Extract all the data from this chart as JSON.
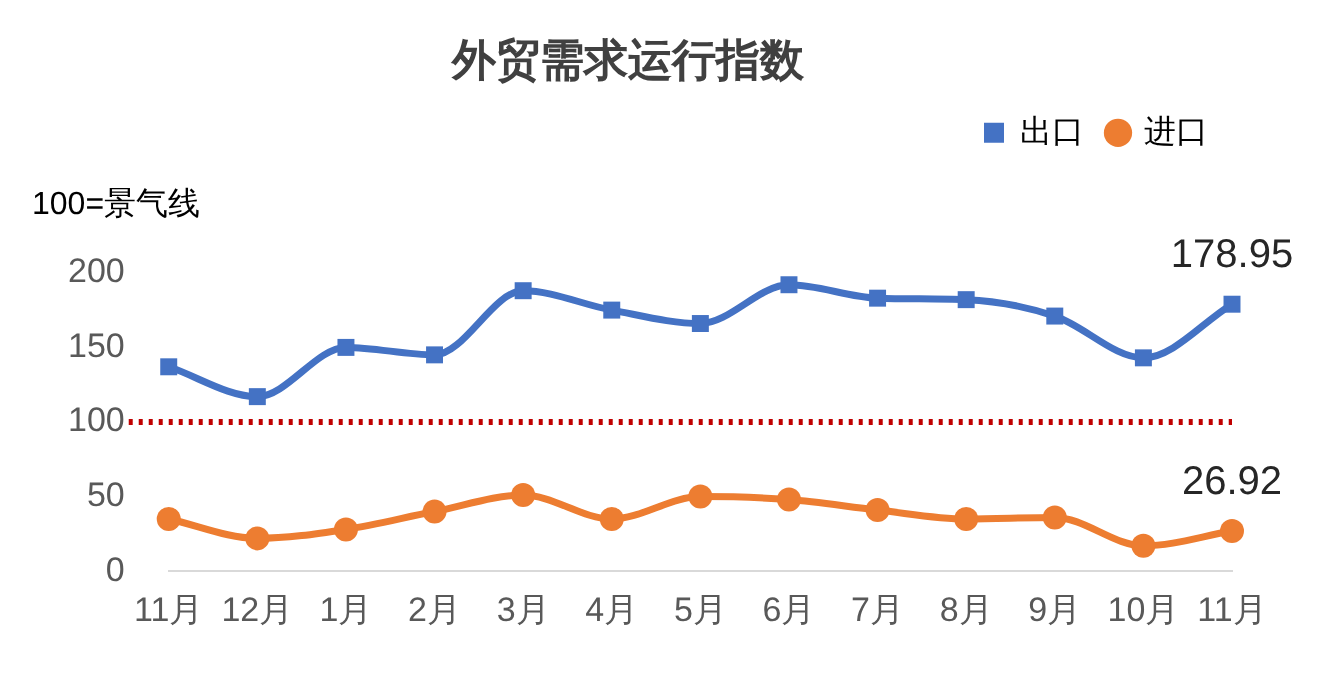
{
  "chart_data": {
    "type": "line",
    "title": "外贸需求运行指数",
    "categories": [
      "11月",
      "12月",
      "1月",
      "2月",
      "3月",
      "4月",
      "5月",
      "6月",
      "7月",
      "8月",
      "9月",
      "10月",
      "11月"
    ],
    "series": [
      {
        "name": "出口",
        "color": "#4472c4",
        "marker": "square",
        "values": [
          137,
          117,
          150,
          145,
          188,
          175,
          166,
          192,
          183,
          182,
          171,
          143,
          178.95
        ],
        "value_labels": [
          null,
          null,
          null,
          null,
          null,
          null,
          null,
          null,
          null,
          null,
          null,
          null,
          "178.95"
        ]
      },
      {
        "name": "进口",
        "color": "#ed7d31",
        "marker": "circle",
        "values": [
          35,
          22,
          28,
          40,
          51,
          35,
          50,
          48,
          41,
          35,
          36,
          17,
          26.92
        ],
        "value_labels": [
          null,
          null,
          null,
          null,
          null,
          null,
          null,
          null,
          null,
          null,
          null,
          null,
          "26.92"
        ]
      }
    ],
    "ylim": [
      0,
      200
    ],
    "yticks": [
      0,
      50,
      100,
      150,
      200
    ],
    "grid": false,
    "legend": "top right",
    "line_style": "solid",
    "ref_lines": [
      {
        "axis": "y",
        "value": 100,
        "color": "#c00000",
        "line_style": "dotted"
      }
    ],
    "annotations": [
      "100=景气线"
    ]
  }
}
